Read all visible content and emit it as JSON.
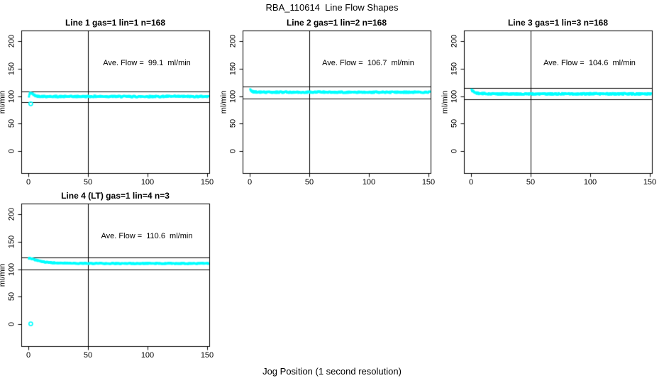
{
  "chart_data": {
    "type": "scatter",
    "title": "RBA_110614  Line Flow Shapes",
    "xlabel": "Jog Position (1 second resolution)",
    "ylabel": "ml/min",
    "marker_color": "#00FFFF",
    "line_color": "#000000",
    "x_ticks": [
      0,
      50,
      100,
      150
    ],
    "y_ticks": [
      0,
      50,
      100,
      150,
      200
    ],
    "x_range": [
      0,
      151
    ],
    "y_axis_display_range": [
      0,
      200
    ],
    "vline_x": 50,
    "grid": false,
    "panels": [
      {
        "title": "Line 1 gas=1 lin=1 n=168",
        "annotation": "Ave. Flow =  99.1  ml/min",
        "ave_flow": 99.1,
        "ref_lines": [
          109.0,
          89.2
        ],
        "profile": [
          [
            0.5,
            99
          ],
          [
            1,
            104
          ],
          [
            2,
            106
          ],
          [
            3,
            105
          ],
          [
            4,
            103
          ],
          [
            6,
            100.5
          ],
          [
            8,
            99.8
          ],
          [
            15,
            99.4
          ],
          [
            30,
            99.2
          ],
          [
            60,
            99.4
          ],
          [
            90,
            99.2
          ],
          [
            120,
            99.4
          ],
          [
            151,
            99.3
          ]
        ],
        "outliers": [
          [
            2,
            86
          ]
        ],
        "jitter": 1.3
      },
      {
        "title": "Line 2 gas=1 lin=2 n=168",
        "annotation": "Ave. Flow =  106.7  ml/min",
        "ave_flow": 106.7,
        "ref_lines": [
          117.4,
          96.0
        ],
        "profile": [
          [
            0.5,
            111
          ],
          [
            1.5,
            110
          ],
          [
            3,
            108
          ],
          [
            6,
            107.3
          ],
          [
            15,
            107
          ],
          [
            50,
            107.1
          ],
          [
            100,
            107
          ],
          [
            151,
            107.1
          ]
        ],
        "outliers": [],
        "jitter": 1.3
      },
      {
        "title": "Line 3 gas=1 lin=3 n=168",
        "annotation": "Ave. Flow =  104.6  ml/min",
        "ave_flow": 104.6,
        "ref_lines": [
          115.1,
          94.1
        ],
        "profile": [
          [
            0.5,
            111
          ],
          [
            1.5,
            109.5
          ],
          [
            3,
            106.5
          ],
          [
            6,
            105
          ],
          [
            10,
            104.5
          ],
          [
            20,
            104
          ],
          [
            50,
            103.9
          ],
          [
            100,
            104.1
          ],
          [
            151,
            104
          ]
        ],
        "outliers": [],
        "jitter": 1.4
      },
      {
        "title": "Line 4 (LT) gas=1 lin=4 n=3",
        "annotation": "Ave. Flow =  110.6  ml/min",
        "ave_flow": 110.6,
        "ref_lines": [
          121.7,
          99.5
        ],
        "profile": [
          [
            0.5,
            120
          ],
          [
            2,
            119.5
          ],
          [
            4,
            118
          ],
          [
            7,
            116
          ],
          [
            10,
            114.5
          ],
          [
            15,
            112.8
          ],
          [
            20,
            111.8
          ],
          [
            27,
            111.2
          ],
          [
            35,
            110.8
          ],
          [
            50,
            110.5
          ],
          [
            70,
            110.4
          ],
          [
            90,
            110.3
          ],
          [
            110,
            110.5
          ],
          [
            130,
            110.3
          ],
          [
            151,
            110.4
          ]
        ],
        "outliers": [
          [
            2,
            0.5
          ]
        ],
        "jitter": 0.9
      }
    ]
  }
}
